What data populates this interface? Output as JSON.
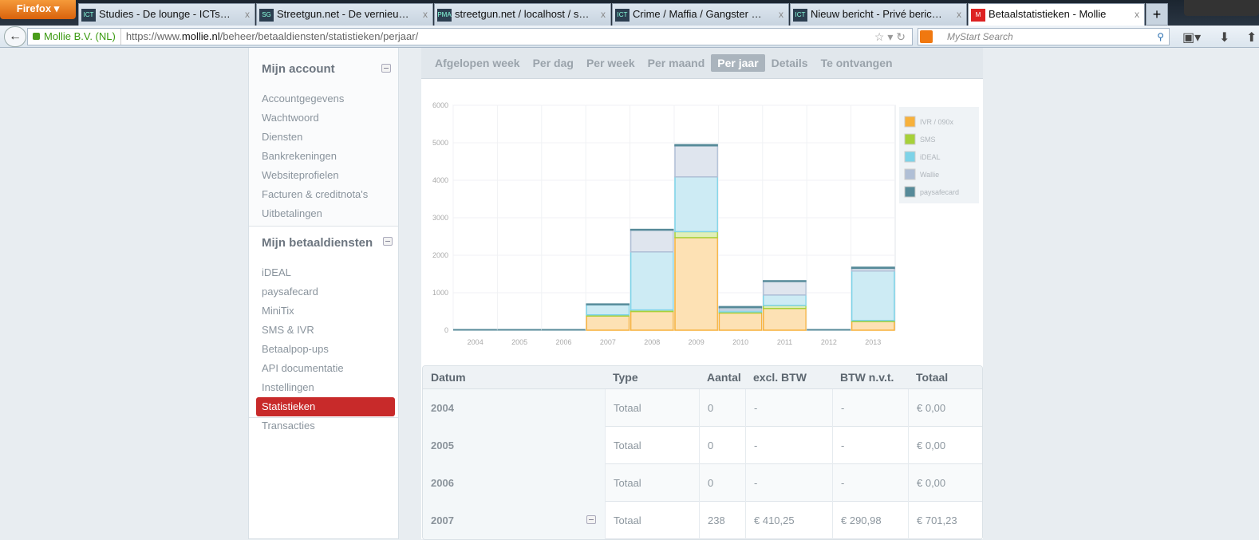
{
  "browser": {
    "menu_label": "Firefox",
    "tabs": [
      {
        "title": "Studies - De lounge - ICTscripters",
        "icon": "ICT"
      },
      {
        "title": "Streetgun.net - De vernieuwde v...",
        "icon": "SG"
      },
      {
        "title": "streetgun.net / localhost / street...",
        "icon": "PMA"
      },
      {
        "title": "Crime / Maffia / Gangster Site w...",
        "icon": "ICT"
      },
      {
        "title": "Nieuw bericht - Privé berichten -...",
        "icon": "ICT"
      },
      {
        "title": "Betaalstatistieken - Mollie",
        "icon": "M",
        "active": true
      }
    ],
    "new_tab": "+",
    "identity": "Mollie B.V. (NL)",
    "url_prefix": "https://www.",
    "url_domain": "mollie.nl",
    "url_path": "/beheer/betaaldiensten/statistieken/perjaar/",
    "search_placeholder": "MyStart Search"
  },
  "sidebar": {
    "sections": [
      {
        "title": "Mijn account",
        "items": [
          "Accountgegevens",
          "Wachtwoord",
          "Diensten",
          "Bankrekeningen",
          "Websiteprofielen",
          "Facturen & creditnota's",
          "Uitbetalingen"
        ]
      },
      {
        "title": "Mijn betaaldiensten",
        "items": [
          "iDEAL",
          "paysafecard",
          "MiniTix",
          "SMS & IVR",
          "Betaalpop-ups",
          "API documentatie",
          "Instellingen",
          "Statistieken",
          "Transacties"
        ],
        "active": "Statistieken"
      }
    ]
  },
  "period_tabs": [
    "Afgelopen week",
    "Per dag",
    "Per week",
    "Per maand",
    "Per jaar",
    "Details",
    "Te ontvangen"
  ],
  "active_period": "Per jaar",
  "chart_data": {
    "type": "bar",
    "stacked": true,
    "categories": [
      "2004",
      "2005",
      "2006",
      "2007",
      "2008",
      "2009",
      "2010",
      "2011",
      "2012",
      "2013"
    ],
    "ylim": [
      0,
      6000
    ],
    "yticks": [
      0,
      1000,
      2000,
      3000,
      4000,
      5000,
      6000
    ],
    "grid": true,
    "legend_position": "right",
    "series": [
      {
        "name": "IVR / 090x",
        "color": "#f7b13b",
        "fill": "#fde1b4",
        "values": [
          0,
          0,
          0,
          380,
          500,
          2470,
          460,
          580,
          0,
          230
        ]
      },
      {
        "name": "SMS",
        "color": "#a6d13a",
        "fill": "#e0efb9",
        "values": [
          0,
          0,
          0,
          30,
          40,
          160,
          30,
          80,
          0,
          30
        ]
      },
      {
        "name": "iDEAL",
        "color": "#7dd3e8",
        "fill": "#cdebf4",
        "values": [
          0,
          0,
          0,
          270,
          1550,
          1460,
          50,
          280,
          0,
          1320
        ]
      },
      {
        "name": "Wallie",
        "color": "#b0bfd6",
        "fill": "#dfe5ee",
        "values": [
          0,
          0,
          0,
          0,
          580,
          830,
          60,
          360,
          0,
          70
        ]
      },
      {
        "name": "paysafecard",
        "color": "#568a99",
        "fill": "#568a99",
        "values": [
          0,
          0,
          0,
          20,
          20,
          30,
          30,
          20,
          0,
          30
        ]
      }
    ]
  },
  "table": {
    "headers": [
      "Datum",
      "Type",
      "Aantal",
      "excl. BTW",
      "BTW n.v.t.",
      "Totaal"
    ],
    "rows": [
      [
        "2004",
        "Totaal",
        "0",
        "-",
        "-",
        "€ 0,00"
      ],
      [
        "2005",
        "Totaal",
        "0",
        "-",
        "-",
        "€ 0,00"
      ],
      [
        "2006",
        "Totaal",
        "0",
        "-",
        "-",
        "€ 0,00"
      ],
      [
        "2007",
        "Totaal",
        "238",
        "€ 410,25",
        "€ 290,98",
        "€ 701,23"
      ]
    ]
  }
}
